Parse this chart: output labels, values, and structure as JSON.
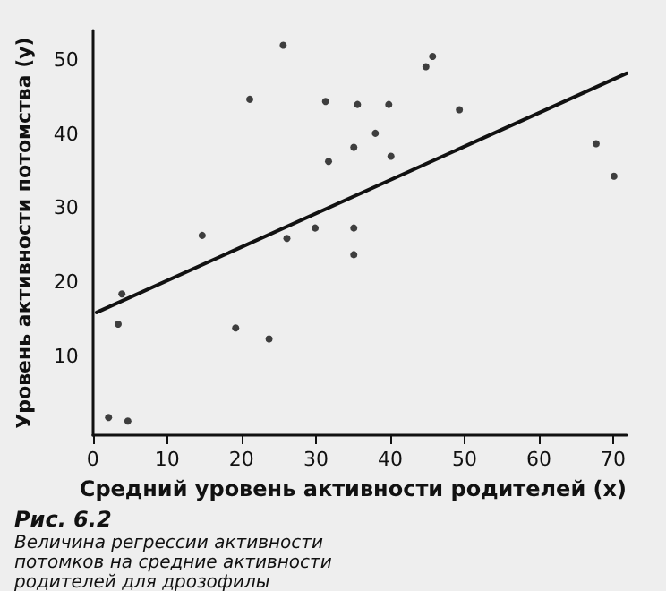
{
  "chart_data": {
    "type": "scatter",
    "xlabel": "Средний уровень активности родителей (x)",
    "ylabel": "Уровень активности потомства (y)",
    "annotations": [
      "Рис. 6.2",
      "Величина регрессии активности потомков на средние активности родителей для дрозофилы"
    ],
    "xlim": [
      0,
      71.8
    ],
    "xticks": [
      0,
      10,
      20,
      30,
      40,
      50,
      60,
      70
    ],
    "ylim": [
      -0.7,
      54
    ],
    "yticks": [
      10,
      20,
      30,
      40,
      50
    ],
    "grid": false,
    "marker": "circle",
    "series": [
      {
        "color": "#111111",
        "x": [
          2.1,
          4.7,
          3.4,
          3.9,
          14.7,
          19.2,
          21.1,
          23.7,
          25.6,
          26.1,
          29.9,
          31.3,
          31.7,
          35.1,
          35.1,
          35.1,
          35.6,
          38.0,
          39.8,
          40.1,
          44.8,
          45.7,
          49.3,
          67.7,
          70.1
        ],
        "values": [
          1.7,
          1.2,
          14.3,
          18.4,
          26.3,
          13.8,
          44.7,
          12.3,
          52.0,
          25.9,
          27.3,
          44.4,
          36.3,
          38.2,
          27.3,
          23.7,
          44.0,
          40.1,
          44.0,
          37.0,
          49.1,
          50.5,
          43.3,
          38.7,
          34.3
        ]
      },
      {
        "type": "line",
        "color": "#111111",
        "marker": "none",
        "x": [
          0.5,
          71.8
        ],
        "values": [
          15.9,
          48.2
        ]
      }
    ]
  }
}
